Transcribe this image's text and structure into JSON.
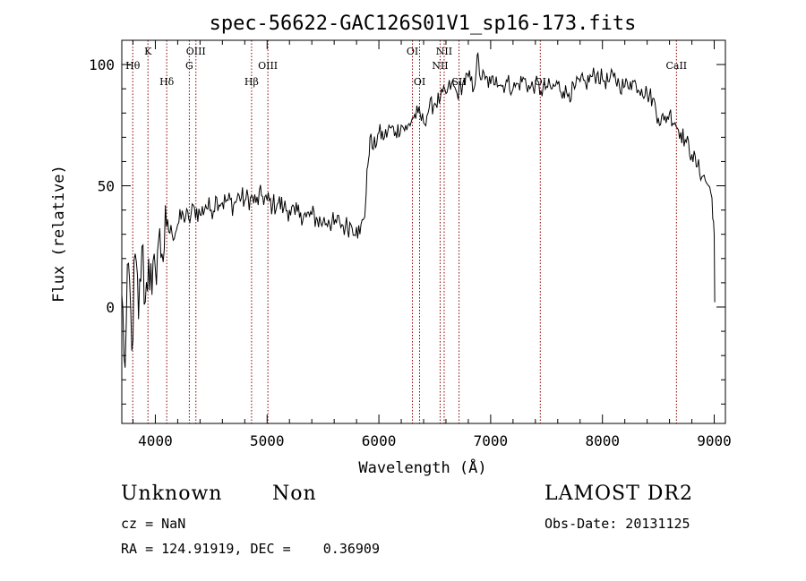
{
  "chart_data": {
    "type": "line",
    "title": "spec-56622-GAC126S01V1_sp16-173.fits",
    "xlabel": "Wavelength (Å)",
    "ylabel": "Flux (relative)",
    "xlim": [
      3700,
      9100
    ],
    "ylim": [
      -48,
      110
    ],
    "xticks": [
      4000,
      5000,
      6000,
      7000,
      8000,
      9000
    ],
    "yticks": [
      0,
      50,
      100
    ],
    "grid": false,
    "line_color": "#000000",
    "marker_color": "#8b0000",
    "series": [
      {
        "x": [
          3700,
          3730,
          3760,
          3790,
          3820,
          3850,
          3880,
          3910,
          3940,
          3970,
          4000,
          4030,
          4060,
          4100,
          4150,
          4200,
          4250,
          4300,
          4350,
          4400,
          4450,
          4500,
          4550,
          4600,
          4650,
          4700,
          4750,
          4800,
          4850,
          4900,
          4950,
          5000,
          5050,
          5100,
          5150,
          5200,
          5250,
          5300,
          5350,
          5400,
          5450,
          5500,
          5550,
          5600,
          5650,
          5700,
          5750,
          5800,
          5830,
          5860,
          5880,
          5900,
          5920,
          5950,
          6000,
          6050,
          6100,
          6150,
          6200,
          6250,
          6300,
          6350,
          6400,
          6450,
          6500,
          6550,
          6600,
          6650,
          6700,
          6750,
          6800,
          6850,
          6880,
          6900,
          6950,
          7000,
          7050,
          7100,
          7150,
          7200,
          7250,
          7300,
          7350,
          7400,
          7450,
          7500,
          7550,
          7600,
          7650,
          7700,
          7750,
          7800,
          7850,
          7900,
          7950,
          8000,
          8050,
          8100,
          8150,
          8200,
          8250,
          8300,
          8350,
          8400,
          8450,
          8500,
          8550,
          8600,
          8650,
          8700,
          8750,
          8800,
          8850,
          8900,
          8950,
          8980,
          9000,
          9005
        ],
        "y": [
          5,
          -25,
          18,
          -18,
          22,
          -5,
          25,
          2,
          20,
          5,
          16,
          28,
          22,
          33,
          30,
          34,
          38,
          36,
          41,
          38,
          42,
          40,
          45,
          43,
          44,
          42,
          46,
          44,
          45,
          43,
          46,
          44,
          42,
          43,
          41,
          40,
          38,
          39,
          37,
          38,
          36,
          35,
          36,
          34,
          35,
          33,
          34,
          33,
          30,
          36,
          42,
          58,
          70,
          65,
          72,
          70,
          74,
          72,
          75,
          73,
          78,
          80,
          76,
          82,
          84,
          86,
          88,
          92,
          88,
          92,
          95,
          90,
          104,
          96,
          94,
          92,
          95,
          91,
          93,
          90,
          92,
          94,
          90,
          92,
          89,
          91,
          90,
          92,
          89,
          88,
          90,
          93,
          92,
          95,
          96,
          94,
          93,
          95,
          92,
          91,
          93,
          92,
          90,
          88,
          86,
          78,
          77,
          80,
          76,
          72,
          68,
          63,
          58,
          54,
          50,
          45,
          30,
          2
        ]
      }
    ],
    "lines": [
      {
        "label": "Hθ",
        "x": 3798,
        "row": "lower"
      },
      {
        "label": "K",
        "x": 3934,
        "row": "upper"
      },
      {
        "label": "Hδ",
        "x": 4102,
        "row": "bottom"
      },
      {
        "label": "G",
        "x": 4304,
        "row": "lower"
      },
      {
        "label": "OIII",
        "x": 4363,
        "row": "upper"
      },
      {
        "label": "Hβ",
        "x": 4861,
        "row": "bottom"
      },
      {
        "label": "OIII",
        "x": 5007,
        "row": "lower"
      },
      {
        "label": "OI",
        "x": 6300,
        "row": "upper"
      },
      {
        "label": "OI",
        "x": 6364,
        "row": "bottom"
      },
      {
        "label": "NII",
        "x": 6548,
        "row": "lower"
      },
      {
        "label": "NII",
        "x": 6584,
        "row": "upper"
      },
      {
        "label": "SII",
        "x": 6717,
        "row": "bottom"
      },
      {
        "label": "OI",
        "x": 7444,
        "row": "bottom"
      },
      {
        "label": "CaII",
        "x": 8662,
        "row": "lower"
      }
    ]
  },
  "info": {
    "class_label": "Unknown",
    "subclass_label": "Non",
    "cz": "cz = NaN",
    "radec": "RA = 124.91919, DEC =    0.36909",
    "survey": "LAMOST DR2",
    "obs_date": "Obs-Date: 20131125"
  }
}
